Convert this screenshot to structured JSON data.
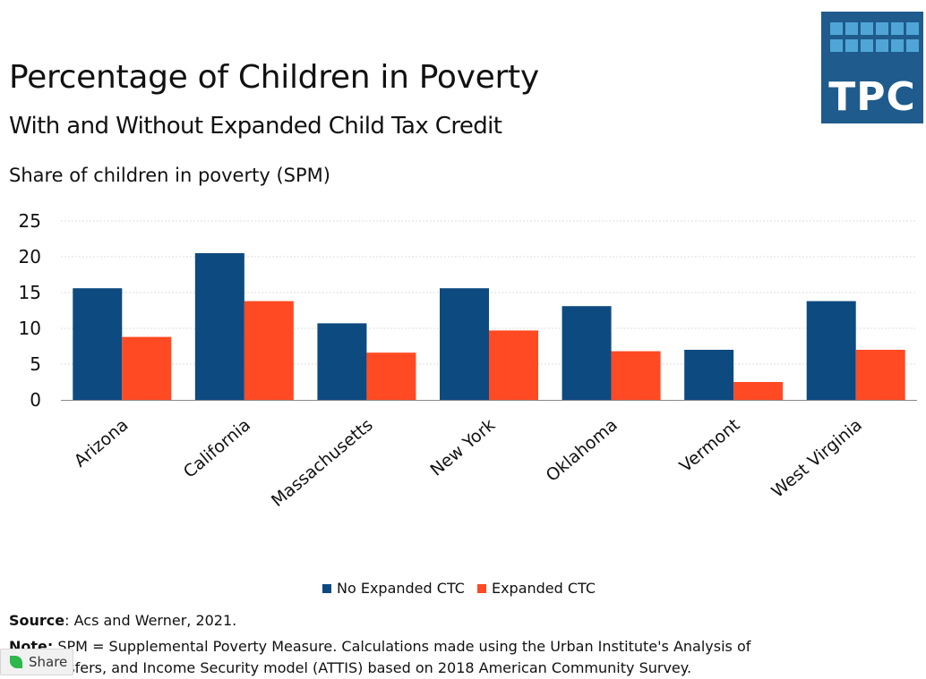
{
  "logo": {
    "text": "TPC",
    "bg_color": "#1f5b8c",
    "cell_color": "#4fa6d6"
  },
  "chart_data": {
    "type": "bar",
    "title": "Percentage of Children in Poverty",
    "subtitle": "With and Without Expanded Child Tax Credit",
    "ylabel": "Share of children in poverty (SPM)",
    "categories": [
      "Arizona",
      "California",
      "Massachusetts",
      "New York",
      "Oklahoma",
      "Vermont",
      "West Virginia"
    ],
    "series": [
      {
        "name": "No Expanded CTC",
        "color": "#0d4a80",
        "values": [
          15.6,
          20.5,
          10.7,
          15.6,
          13.1,
          7.0,
          13.8
        ]
      },
      {
        "name": "Expanded CTC",
        "color": "#ff4a23",
        "values": [
          8.8,
          13.8,
          6.6,
          9.7,
          6.8,
          2.5,
          7.0
        ]
      }
    ],
    "yticks": [
      "0",
      "5",
      "10",
      "15",
      "20",
      "25"
    ],
    "ylim": [
      0,
      25
    ],
    "grid": true,
    "legend": "bottom-center"
  },
  "footer": {
    "source_label": "Source",
    "source_text": ":  Acs and Werner, 2021.",
    "note_label": "Note:",
    "note_line1": " SPM = Supplemental Poverty Measure. Calculations  made using the Urban Institute's Analysis of",
    "note_line2": "the Transfers, and Income Security model (ATTIS) based on 2018 American Community Survey."
  },
  "share": {
    "label": "Share"
  }
}
